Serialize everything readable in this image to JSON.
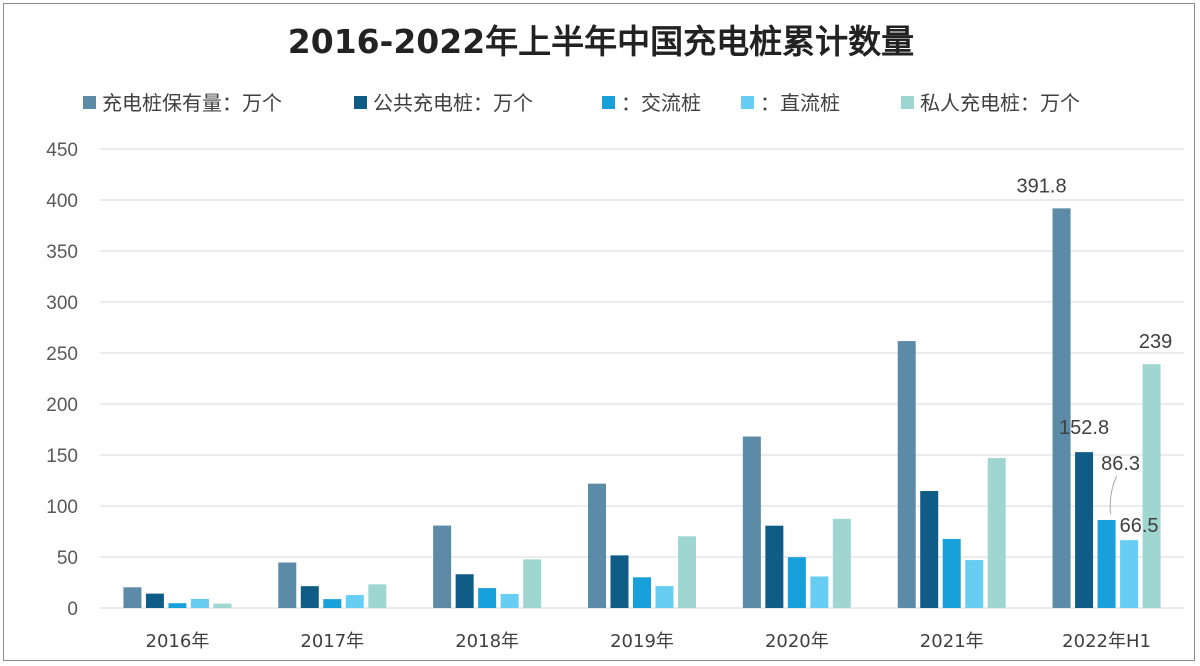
{
  "chart_data": {
    "type": "bar",
    "title": "2016-2022年上半年中国充电桩累计数量",
    "categories": [
      "2016年",
      "2017年",
      "2018年",
      "2019年",
      "2020年",
      "2021年",
      "2022年H1"
    ],
    "ylim": [
      0,
      450
    ],
    "yticks": [
      0,
      50,
      100,
      150,
      200,
      250,
      300,
      350,
      400,
      450
    ],
    "grid": true,
    "legend_position": "top",
    "series": [
      {
        "name": "充电桩保有量：万个",
        "color": "#5b8ba6",
        "values": [
          20.3,
          44.6,
          80.8,
          121.9,
          168.1,
          261.7,
          391.8
        ]
      },
      {
        "name": "公共充电桩：万个",
        "color": "#0f5d86",
        "values": [
          14.1,
          21.4,
          33.1,
          51.6,
          80.7,
          114.7,
          152.8
        ]
      },
      {
        "name": "：交流桩",
        "color": "#17a0d9",
        "values": [
          4.7,
          8.7,
          19.5,
          30.1,
          49.8,
          67.7,
          86.3
        ]
      },
      {
        "name": "：直流桩",
        "color": "#67cdf3",
        "values": [
          8.9,
          12.7,
          13.7,
          21.5,
          30.9,
          47.0,
          66.5
        ]
      },
      {
        "name": "私人充电桩：万个",
        "color": "#9fd6d2",
        "values": [
          4.3,
          23.2,
          47.7,
          70.3,
          87.4,
          147.0,
          239.0
        ]
      }
    ],
    "data_labels": [
      {
        "series": 0,
        "category": 6,
        "text": "391.8"
      },
      {
        "series": 1,
        "category": 6,
        "text": "152.8"
      },
      {
        "series": 2,
        "category": 6,
        "text": "86.3"
      },
      {
        "series": 3,
        "category": 6,
        "text": "66.5"
      },
      {
        "series": 4,
        "category": 6,
        "text": "239"
      }
    ]
  }
}
